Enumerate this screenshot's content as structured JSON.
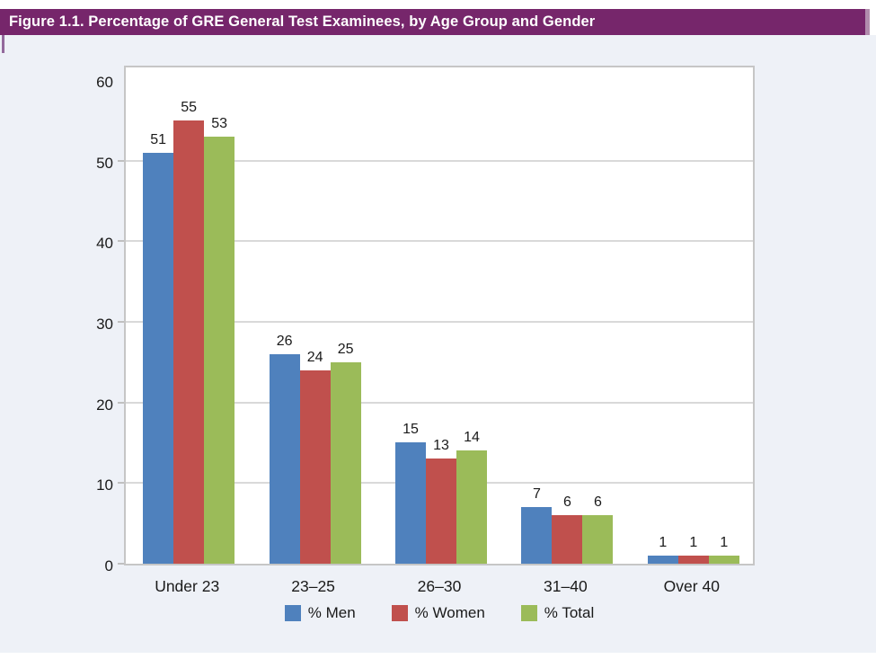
{
  "header": {
    "title": "Figure 1.1. Percentage of GRE General Test Examinees, by Age Group and Gender"
  },
  "colors": {
    "header_bg": "#76266B",
    "header_edge_strip": "#B18CAD",
    "left_tick": "#93699C",
    "panel_bg": "#EEF1F7",
    "plot_bg": "#FFFFFF",
    "plot_border": "#C6C6C6",
    "gridline": "#D9D9D9",
    "tick": "#C0C0C0",
    "text": "#1A1A1A",
    "title_text": "#FFFFFF",
    "men": "#4F81BD",
    "women": "#C0504D",
    "total": "#9BBB59"
  },
  "chart_data": {
    "type": "bar",
    "title": "Figure 1.1. Percentage of GRE General Test Examinees, by Age Group and Gender",
    "categories": [
      "Under 23",
      "23–25",
      "26–30",
      "31–40",
      "Over 40"
    ],
    "series": [
      {
        "name": "% Men",
        "color_key": "men",
        "values": [
          51,
          26,
          15,
          7,
          1
        ]
      },
      {
        "name": "% Women",
        "color_key": "women",
        "values": [
          55,
          24,
          13,
          6,
          1
        ]
      },
      {
        "name": "% Total",
        "color_key": "total",
        "values": [
          53,
          25,
          14,
          6,
          1
        ]
      }
    ],
    "xlabel": "",
    "ylabel": "",
    "ylim": [
      0,
      62
    ],
    "yticks": [
      0,
      10,
      20,
      30,
      40,
      50,
      60
    ],
    "gridline_values": [
      10,
      20,
      30,
      40,
      50
    ],
    "grid": true,
    "data_labels": true,
    "legend_position": "bottom"
  }
}
